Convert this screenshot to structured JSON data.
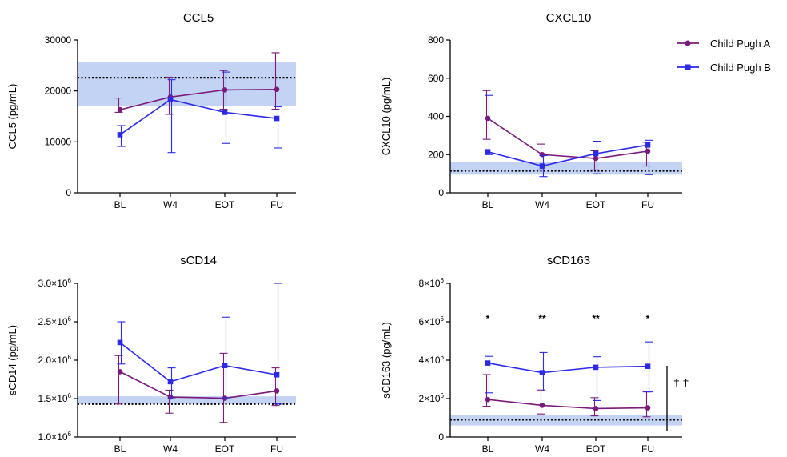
{
  "legend": [
    {
      "name": "Child Pugh A",
      "color": "#7a1a7a",
      "marker": "circle"
    },
    {
      "name": "Child Pugh B",
      "color": "#2a2ae8",
      "marker": "square"
    }
  ],
  "chart_data": [
    {
      "type": "line",
      "title": "CCL5",
      "ylabel": "CCL5 (pg/mL)",
      "categories": [
        "BL",
        "W4",
        "EOT",
        "FU"
      ],
      "ylim": [
        0,
        30000
      ],
      "yticks": [
        {
          "v": 0,
          "label": "0"
        },
        {
          "v": 10000,
          "label": "10000"
        },
        {
          "v": 20000,
          "label": "20000"
        },
        {
          "v": 30000,
          "label": "30000"
        }
      ],
      "reference_line": 22600,
      "reference_band": [
        17100,
        25600
      ],
      "series": [
        {
          "name": "Child Pugh A",
          "values": [
            16300,
            18800,
            20200,
            20300
          ],
          "err_low": [
            15800,
            15400,
            16400,
            16400
          ],
          "err_high": [
            18600,
            22700,
            24000,
            27500
          ]
        },
        {
          "name": "Child Pugh B",
          "values": [
            11400,
            18300,
            15800,
            14600
          ],
          "err_low": [
            9100,
            7900,
            9700,
            8800
          ],
          "err_high": [
            13200,
            22200,
            23700,
            16900
          ]
        }
      ],
      "annotations": []
    },
    {
      "type": "line",
      "title": "CXCL10",
      "ylabel": "CXCL10 (pg/mL)",
      "categories": [
        "BL",
        "W4",
        "EOT",
        "FU"
      ],
      "ylim": [
        0,
        800
      ],
      "yticks": [
        {
          "v": 0,
          "label": "0"
        },
        {
          "v": 200,
          "label": "200"
        },
        {
          "v": 400,
          "label": "400"
        },
        {
          "v": 600,
          "label": "600"
        },
        {
          "v": 800,
          "label": "800"
        }
      ],
      "reference_line": 115,
      "reference_band": [
        95,
        160
      ],
      "series": [
        {
          "name": "Child Pugh A",
          "values": [
            390,
            200,
            180,
            218
          ],
          "err_low": [
            280,
            120,
            120,
            140
          ],
          "err_high": [
            535,
            255,
            220,
            265
          ]
        },
        {
          "name": "Child Pugh B",
          "values": [
            215,
            140,
            205,
            250
          ],
          "err_low": [
            200,
            85,
            100,
            95
          ],
          "err_high": [
            510,
            195,
            270,
            275
          ]
        }
      ],
      "annotations": []
    },
    {
      "type": "line",
      "title": "sCD14",
      "ylabel": "sCD14 (pg/mL)",
      "categories": [
        "BL",
        "W4",
        "EOT",
        "FU"
      ],
      "ylim": [
        1000000,
        3000000
      ],
      "yticks": [
        {
          "v": 1000000,
          "label": "1.0×10",
          "exp": "6"
        },
        {
          "v": 1500000,
          "label": "1.5×10",
          "exp": "6"
        },
        {
          "v": 2000000,
          "label": "2.0×10",
          "exp": "6"
        },
        {
          "v": 2500000,
          "label": "2.5×10",
          "exp": "6"
        },
        {
          "v": 3000000,
          "label": "3.0×10",
          "exp": "6"
        }
      ],
      "reference_line": 1430000,
      "reference_band": [
        1430000,
        1530000
      ],
      "series": [
        {
          "name": "Child Pugh A",
          "values": [
            1850000,
            1520000,
            1505000,
            1600000
          ],
          "err_low": [
            1430000,
            1310000,
            1190000,
            1410000
          ],
          "err_high": [
            2060000,
            1610000,
            2090000,
            1900000
          ]
        },
        {
          "name": "Child Pugh B",
          "values": [
            2230000,
            1720000,
            1930000,
            1810000
          ],
          "err_low": [
            1950000,
            1500000,
            1510000,
            1430000
          ],
          "err_high": [
            2500000,
            1900000,
            2560000,
            3000000
          ]
        }
      ],
      "annotations": []
    },
    {
      "type": "line",
      "title": "sCD163",
      "ylabel": "sCD163 (pg/mL)",
      "categories": [
        "BL",
        "W4",
        "EOT",
        "FU"
      ],
      "ylim": [
        0,
        8000000
      ],
      "yticks": [
        {
          "v": 0,
          "label": "0"
        },
        {
          "v": 2000000,
          "label": "2×10",
          "exp": "6"
        },
        {
          "v": 4000000,
          "label": "4×10",
          "exp": "6"
        },
        {
          "v": 6000000,
          "label": "6×10",
          "exp": "6"
        },
        {
          "v": 8000000,
          "label": "8×10",
          "exp": "6"
        }
      ],
      "reference_line": 900000,
      "reference_band": [
        600000,
        1150000
      ],
      "series": [
        {
          "name": "Child Pugh A",
          "values": [
            1950000,
            1650000,
            1480000,
            1520000
          ],
          "err_low": [
            1600000,
            1200000,
            1100000,
            1050000
          ],
          "err_high": [
            3250000,
            2450000,
            2050000,
            2350000
          ]
        },
        {
          "name": "Child Pugh B",
          "values": [
            3850000,
            3350000,
            3630000,
            3680000
          ],
          "err_low": [
            2300000,
            2400000,
            1900000,
            2350000
          ],
          "err_high": [
            4200000,
            4400000,
            4180000,
            4950000
          ]
        }
      ],
      "annotations": [
        "*",
        "**",
        "**",
        "*"
      ],
      "bracket_label": "† †"
    }
  ]
}
